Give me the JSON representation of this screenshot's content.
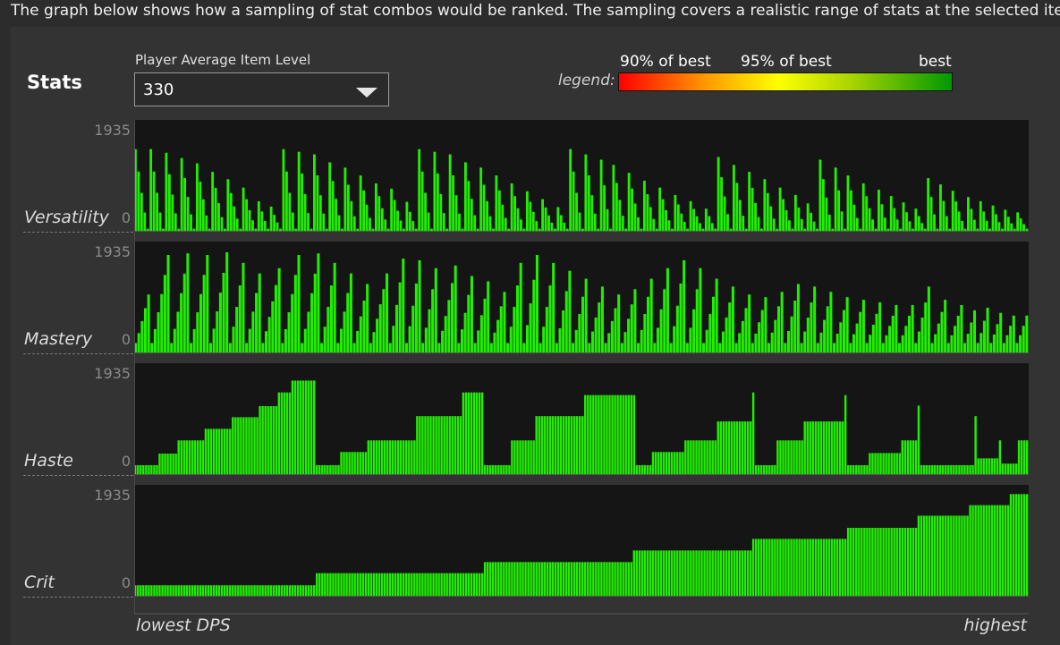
{
  "intro_text": "The graph below shows how a sampling of stat combos would be ranked. The sampling covers a realistic range of stats at the selected item l",
  "stats_title": "Stats",
  "item_level": {
    "label": "Player Average Item Level",
    "selected": "330"
  },
  "legend": {
    "word": "legend:",
    "low_label": "90% of best",
    "mid_label": "95% of best",
    "high_label": "best"
  },
  "colors": {
    "bar": "#22ee00",
    "plot_bg": "#151515",
    "low": "#ff0000",
    "mid": "#ffff00",
    "high": "#009900"
  },
  "chart_data": {
    "type": "bar",
    "xlabel_left": "lowest DPS",
    "xlabel_right": "highest",
    "series": [
      {
        "name": "Versatility",
        "ymax_label": "1935",
        "ymin_label": "0",
        "ylim": [
          0,
          1935
        ],
        "sawtooth": {
          "group_sizes": [
            5,
            5,
            5,
            5,
            5,
            5,
            5,
            5,
            4,
            4,
            5,
            5,
            5,
            5,
            5,
            5,
            5,
            5,
            4,
            5,
            5,
            5,
            5,
            5,
            5,
            5,
            5,
            5,
            4,
            5,
            5,
            4,
            5,
            5,
            5,
            5,
            5,
            5,
            4,
            5,
            5,
            5,
            5,
            5,
            4,
            4,
            5,
            4,
            5,
            5,
            4,
            4,
            4,
            4,
            4,
            4,
            5,
            4,
            4,
            4,
            4,
            4
          ],
          "group_peaks": [
            1550,
            1550,
            1480,
            1380,
            1280,
            1120,
            980,
            820,
            560,
            460,
            1550,
            1500,
            1450,
            1300,
            1200,
            1050,
            900,
            800,
            550,
            1550,
            1500,
            1450,
            1300,
            1200,
            1050,
            900,
            750,
            600,
            450,
            1550,
            1450,
            1350,
            1250,
            1100,
            950,
            820,
            680,
            560,
            420,
            1400,
            1250,
            1120,
            980,
            820,
            680,
            520,
            1350,
            1200,
            1050,
            900,
            780,
            660,
            540,
            420,
            1000,
            880,
            760,
            640,
            560,
            480,
            400,
            350
          ],
          "min_value": 40
        }
      },
      {
        "name": "Mastery",
        "ymax_label": "1935",
        "ymin_label": "0",
        "ylim": [
          0,
          1935
        ],
        "sawtooth": {
          "pattern": "rising",
          "group_sizes": [
            5,
            6,
            6,
            6,
            6,
            5,
            5,
            6,
            6,
            6,
            5,
            5,
            5,
            6,
            5,
            5,
            5,
            6,
            5,
            5,
            5,
            5,
            5,
            5,
            5,
            5,
            5,
            5,
            5,
            5,
            5,
            5,
            5,
            5,
            5,
            5,
            5,
            5,
            5,
            5,
            5,
            5,
            5,
            5,
            5,
            5,
            5,
            5,
            5,
            4,
            4,
            4,
            4,
            4
          ],
          "group_peaks": [
            1100,
            1850,
            1880,
            1850,
            1900,
            1700,
            1500,
            1600,
            1850,
            1880,
            1700,
            1500,
            1300,
            1500,
            1780,
            1750,
            1600,
            1650,
            1450,
            1350,
            1150,
            1700,
            1850,
            1700,
            1550,
            1400,
            1250,
            1100,
            1200,
            1400,
            1600,
            1750,
            1600,
            1400,
            1250,
            1100,
            1050,
            1150,
            1300,
            1250,
            1150,
            1050,
            1000,
            950,
            900,
            900,
            1250,
            1000,
            900,
            800,
            850,
            750,
            700,
            700
          ],
          "min_value": 180
        }
      },
      {
        "name": "Haste",
        "ymax_label": "1935",
        "ymin_label": "0",
        "ylim": [
          0,
          1935
        ],
        "steps": [
          {
            "from": 0,
            "to": 0.0267,
            "value": 170
          },
          {
            "from": 0.0267,
            "to": 0.05,
            "value": 390
          },
          {
            "from": 0.05,
            "to": 0.0791,
            "value": 640
          },
          {
            "from": 0.0791,
            "to": 0.1093,
            "value": 860
          },
          {
            "from": 0.1093,
            "to": 0.1386,
            "value": 1080
          },
          {
            "from": 0.1386,
            "to": 0.1602,
            "value": 1290
          },
          {
            "from": 0.1602,
            "to": 0.1772,
            "value": 1550
          },
          {
            "from": 0.1772,
            "to": 0.2042,
            "value": 1775
          },
          {
            "from": 0.2042,
            "to": 0.2293,
            "value": 170
          },
          {
            "from": 0.2293,
            "to": 0.2591,
            "value": 420
          },
          {
            "from": 0.2591,
            "to": 0.3153,
            "value": 640
          },
          {
            "from": 0.3153,
            "to": 0.3652,
            "value": 1100
          },
          {
            "from": 0.3652,
            "to": 0.3905,
            "value": 1550
          },
          {
            "from": 0.3905,
            "to": 0.3915,
            "value": 1900
          },
          {
            "from": 0.3915,
            "to": 0.4215,
            "value": 170
          },
          {
            "from": 0.4215,
            "to": 0.4494,
            "value": 640
          },
          {
            "from": 0.4494,
            "to": 0.5022,
            "value": 1100
          },
          {
            "from": 0.5022,
            "to": 0.5592,
            "value": 1500
          },
          {
            "from": 0.5592,
            "to": 0.5792,
            "value": 170
          },
          {
            "from": 0.5792,
            "to": 0.6142,
            "value": 420
          },
          {
            "from": 0.6142,
            "to": 0.6502,
            "value": 640
          },
          {
            "from": 0.6502,
            "to": 0.6902,
            "value": 1000
          },
          {
            "from": 0.6902,
            "to": 0.6932,
            "value": 1550
          },
          {
            "from": 0.6932,
            "to": 0.7192,
            "value": 170
          },
          {
            "from": 0.7192,
            "to": 0.7492,
            "value": 640
          },
          {
            "from": 0.7492,
            "to": 0.7952,
            "value": 1000
          },
          {
            "from": 0.7952,
            "to": 0.7962,
            "value": 1500
          },
          {
            "from": 0.7962,
            "to": 0.8212,
            "value": 170
          },
          {
            "from": 0.8212,
            "to": 0.8572,
            "value": 400
          },
          {
            "from": 0.8572,
            "to": 0.8772,
            "value": 640
          },
          {
            "from": 0.8772,
            "to": 0.8782,
            "value": 1300
          },
          {
            "from": 0.8782,
            "to": 0.9402,
            "value": 170
          },
          {
            "from": 0.9402,
            "to": 0.9412,
            "value": 1100
          },
          {
            "from": 0.9412,
            "to": 0.9672,
            "value": 300
          },
          {
            "from": 0.9672,
            "to": 0.9682,
            "value": 640
          },
          {
            "from": 0.9682,
            "to": 0.9882,
            "value": 200
          },
          {
            "from": 0.9882,
            "to": 1.0,
            "value": 640
          }
        ]
      },
      {
        "name": "Crit",
        "ymax_label": "1935",
        "ymin_label": "0",
        "ylim": [
          0,
          1935
        ],
        "steps": [
          {
            "from": 0,
            "to": 0.2025,
            "value": 200
          },
          {
            "from": 0.2025,
            "to": 0.3905,
            "value": 430
          },
          {
            "from": 0.3905,
            "to": 0.5562,
            "value": 640
          },
          {
            "from": 0.5562,
            "to": 0.6902,
            "value": 860
          },
          {
            "from": 0.6902,
            "to": 0.7962,
            "value": 1080
          },
          {
            "from": 0.7962,
            "to": 0.8762,
            "value": 1290
          },
          {
            "from": 0.8762,
            "to": 0.9322,
            "value": 1520
          },
          {
            "from": 0.9322,
            "to": 0.9782,
            "value": 1720
          },
          {
            "from": 0.9782,
            "to": 1.0,
            "value": 1930
          }
        ]
      }
    ]
  }
}
